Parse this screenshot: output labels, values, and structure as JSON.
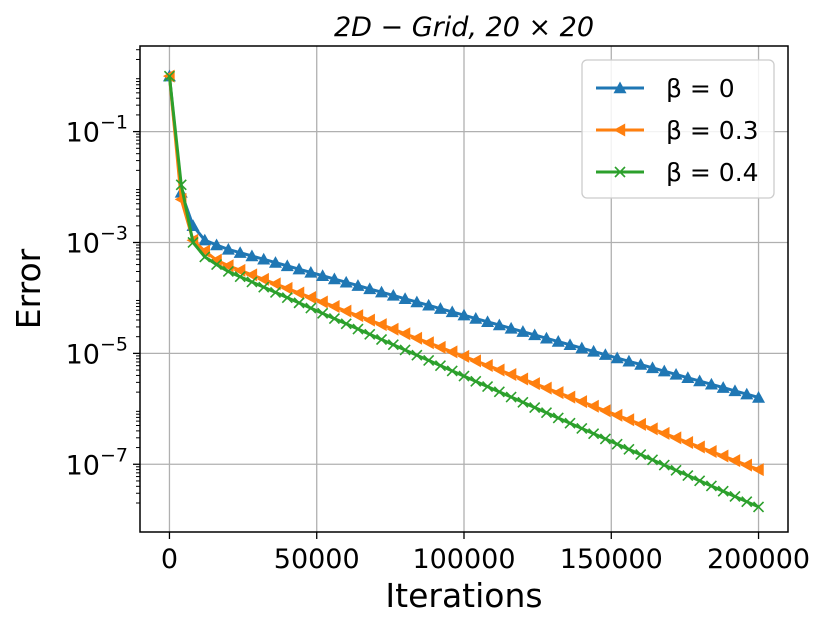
{
  "chart_data": {
    "type": "line",
    "title": "2D − Grid,    20 × 20",
    "xlabel": "Iterations",
    "ylabel": "Error",
    "xlim": [
      -10000,
      210000
    ],
    "ylim": [
      6e-09,
      3.5
    ],
    "y_scale": "log",
    "grid": true,
    "legend_position": "top-right",
    "x_ticks": [
      0,
      50000,
      100000,
      150000,
      200000
    ],
    "x_tick_labels": [
      "0",
      "50000",
      "100000",
      "150000",
      "200000"
    ],
    "y_ticks": [
      1e-07,
      1e-05,
      0.001,
      0.1
    ],
    "y_tick_labels": [
      {
        "base": "10",
        "exp": "−7"
      },
      {
        "base": "10",
        "exp": "−5"
      },
      {
        "base": "10",
        "exp": "−3"
      },
      {
        "base": "10",
        "exp": "−1"
      }
    ],
    "marker_every": 4000,
    "series": [
      {
        "name": "β = 0",
        "color": "#1f77b4",
        "marker": "triangle-up",
        "x": [
          0,
          4000,
          8000,
          12000,
          16000,
          20000,
          200000
        ],
        "y": [
          1.0,
          0.008,
          0.002,
          0.0011,
          0.0009,
          0.00075,
          1.6e-06
        ]
      },
      {
        "name": "β = 0.3",
        "color": "#ff7f0e",
        "marker": "triangle-left",
        "x": [
          0,
          4000,
          8000,
          12000,
          16000,
          20000,
          200000
        ],
        "y": [
          1.0,
          0.006,
          0.0011,
          0.0007,
          0.00048,
          0.00038,
          8e-08
        ]
      },
      {
        "name": "β = 0.4",
        "color": "#2ca02c",
        "marker": "x",
        "x": [
          0,
          4000,
          8000,
          12000,
          16000,
          20000,
          200000
        ],
        "y": [
          1.0,
          0.011,
          0.001,
          0.00055,
          0.0004,
          0.0003,
          1.7e-08
        ]
      }
    ]
  }
}
